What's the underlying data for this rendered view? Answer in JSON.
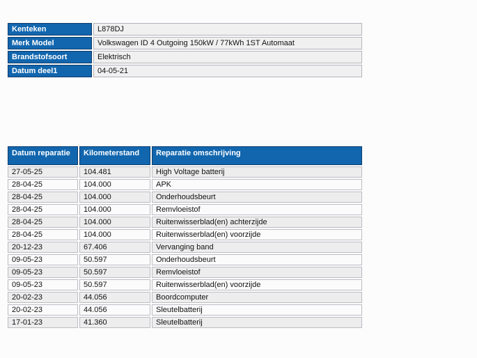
{
  "page": {
    "background": "#fcfcfc"
  },
  "colors": {
    "header_blue": "#1166ae",
    "header_border_navy": "#0d3c6d",
    "info_cell_fill": "#f0f0f1",
    "repair_row_odd": "#ededee",
    "repair_row_even": "#fbfbfc",
    "header_text": "#ffffff"
  },
  "vehicle_info_table": {
    "rows": [
      {
        "label": "Kenteken",
        "value": "L878DJ"
      },
      {
        "label": "Merk Model",
        "value": "Volkswagen ID 4 Outgoing 150kW / 77kWh 1ST Automaat"
      },
      {
        "label": "Brandstofsoort",
        "value": "Elektrisch"
      },
      {
        "label": "Datum deel1",
        "value": "04-05-21"
      }
    ]
  },
  "repair_table": {
    "columns": [
      "Datum reparatie",
      "Kilometerstand",
      "Reparatie omschrijving"
    ],
    "rows": [
      [
        "27-05-25",
        "104.481",
        "High Voltage batterij"
      ],
      [
        "28-04-25",
        "104.000",
        "APK"
      ],
      [
        "28-04-25",
        "104.000",
        "Onderhoudsbeurt"
      ],
      [
        "28-04-25",
        "104.000",
        "Remvloeistof"
      ],
      [
        "28-04-25",
        "104.000",
        "Ruitenwisserblad(en) achterzijde"
      ],
      [
        "28-04-25",
        "104.000",
        "Ruitenwisserblad(en) voorzijde"
      ],
      [
        "20-12-23",
        "67.406",
        "Vervanging band"
      ],
      [
        "09-05-23",
        "50.597",
        "Onderhoudsbeurt"
      ],
      [
        "09-05-23",
        "50.597",
        "Remvloeistof"
      ],
      [
        "09-05-23",
        "50.597",
        "Ruitenwisserblad(en) voorzijde"
      ],
      [
        "20-02-23",
        "44.056",
        "Boordcomputer"
      ],
      [
        "20-02-23",
        "44.056",
        "Sleutelbatterij"
      ],
      [
        "17-01-23",
        "41.360",
        "Sleutelbatterij"
      ]
    ]
  }
}
